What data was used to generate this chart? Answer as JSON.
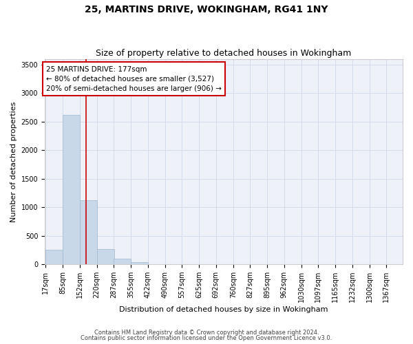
{
  "title1": "25, MARTINS DRIVE, WOKINGHAM, RG41 1NY",
  "title2": "Size of property relative to detached houses in Wokingham",
  "xlabel": "Distribution of detached houses by size in Wokingham",
  "ylabel": "Number of detached properties",
  "bar_color": "#c8d8e8",
  "bar_edge_color": "#a0b8d0",
  "vline_color": "#cc0000",
  "vline_x": 177,
  "annotation_text": "25 MARTINS DRIVE: 177sqm\n← 80% of detached houses are smaller (3,527)\n20% of semi-detached houses are larger (906) →",
  "annotation_box_color": "#ffffff",
  "annotation_box_edge": "#cc0000",
  "bins": [
    17,
    85,
    152,
    220,
    287,
    355,
    422,
    490,
    557,
    625,
    692,
    760,
    827,
    895,
    962,
    1030,
    1097,
    1165,
    1232,
    1300,
    1367
  ],
  "counts": [
    250,
    2620,
    1130,
    270,
    100,
    40,
    5,
    0,
    0,
    0,
    0,
    0,
    0,
    0,
    0,
    0,
    0,
    0,
    0,
    0
  ],
  "ylim": [
    0,
    3600
  ],
  "yticks": [
    0,
    500,
    1000,
    1500,
    2000,
    2500,
    3000,
    3500
  ],
  "grid_color": "#d0d8e8",
  "background_color": "#eef2f8",
  "footnote1": "Contains HM Land Registry data © Crown copyright and database right 2024.",
  "footnote2": "Contains public sector information licensed under the Open Government Licence v3.0.",
  "title1_fontsize": 10,
  "title2_fontsize": 9,
  "xlabel_fontsize": 8,
  "ylabel_fontsize": 8,
  "tick_fontsize": 7,
  "annot_fontsize": 7.5
}
